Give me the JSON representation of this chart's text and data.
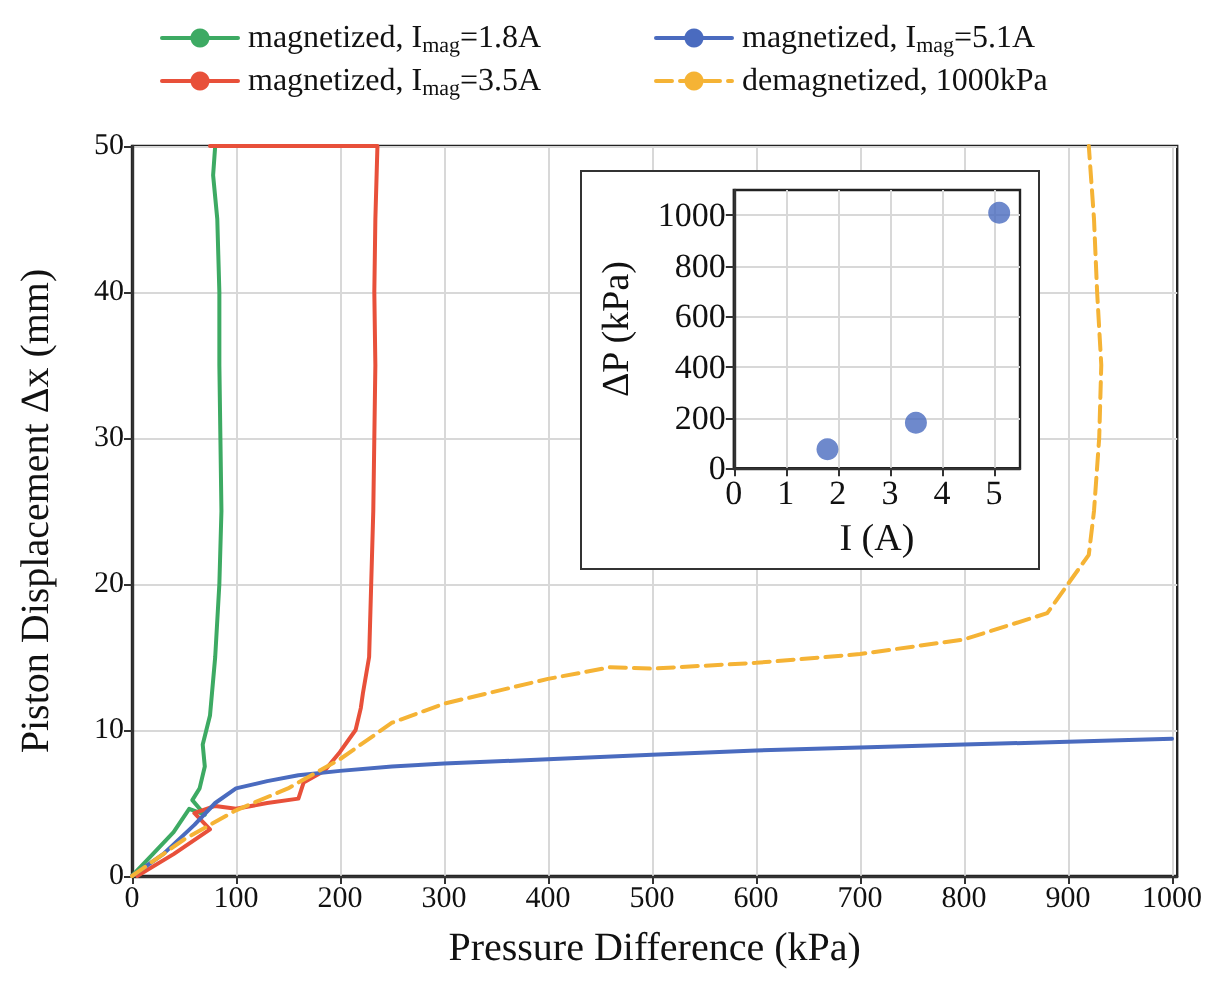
{
  "chart_data": [
    {
      "type": "line",
      "xlabel": "Pressure Difference (kPa)",
      "ylabel": "Piston Displacement Δx (mm)",
      "xlim": [
        0,
        1005
      ],
      "xticks": [
        0,
        100,
        200,
        300,
        400,
        500,
        600,
        700,
        800,
        900,
        1000
      ],
      "ylim": [
        0,
        50
      ],
      "yticks": [
        0,
        10,
        20,
        30,
        40,
        50
      ],
      "grid": true,
      "legend": "top",
      "series": [
        {
          "name": "magnetized, I$_{mag}$=1.8A",
          "color": "#3daa63",
          "line_style": "solid",
          "x": [
            0,
            20,
            40,
            55,
            70,
            58,
            65,
            70,
            68,
            75,
            80,
            84,
            86,
            85,
            84,
            84,
            82,
            78,
            80
          ],
          "values": [
            0,
            1.5,
            3,
            4.6,
            4.2,
            5.2,
            6,
            7.5,
            9,
            11,
            15,
            20,
            25,
            30,
            35,
            40,
            45,
            48,
            50
          ]
        },
        {
          "name": "magnetized, I$_{mag}$=3.5A",
          "color": "#e8503a",
          "line_style": "solid",
          "x": [
            5,
            40,
            75,
            60,
            80,
            100,
            130,
            160,
            165,
            185,
            200,
            215,
            220,
            222,
            228,
            230,
            232,
            233,
            234,
            233,
            234,
            236,
            75
          ],
          "values": [
            0,
            1.5,
            3.2,
            4.3,
            4.8,
            4.6,
            5,
            5.3,
            6.4,
            7.2,
            8.5,
            10,
            11.5,
            12.5,
            15,
            20,
            25,
            30,
            35,
            40,
            45,
            50,
            50
          ]
        },
        {
          "name": "magnetized, I$_{mag}$=5.1A",
          "color": "#4a6bbf",
          "line_style": "solid",
          "x": [
            0,
            30,
            60,
            80,
            100,
            130,
            160,
            200,
            250,
            300,
            400,
            500,
            600,
            700,
            800,
            900,
            1000
          ],
          "values": [
            0,
            1.5,
            3.5,
            5,
            6,
            6.5,
            6.9,
            7.2,
            7.5,
            7.7,
            8,
            8.3,
            8.6,
            8.8,
            9,
            9.2,
            9.4
          ]
        },
        {
          "name": "demagnetized, 1000kPa",
          "color": "#f5b335",
          "line_style": "dashed",
          "x": [
            0,
            50,
            100,
            150,
            200,
            250,
            300,
            400,
            460,
            500,
            600,
            700,
            800,
            880,
            920,
            925,
            930,
            932,
            928,
            925,
            920
          ],
          "values": [
            0,
            2.5,
            4.5,
            6,
            8,
            10.5,
            11.8,
            13.5,
            14.3,
            14.2,
            14.6,
            15.2,
            16.2,
            18,
            22,
            25,
            30,
            35,
            40,
            45,
            50
          ]
        }
      ]
    },
    {
      "type": "scatter",
      "xlabel": "I (A)",
      "ylabel": "ΔP (kPa)",
      "xlim": [
        0,
        5.5
      ],
      "xticks": [
        0,
        1,
        2,
        3,
        4,
        5
      ],
      "ylim": [
        0,
        1100
      ],
      "yticks": [
        0,
        200,
        400,
        600,
        800,
        1000
      ],
      "grid": true,
      "marker": "circle",
      "series": [
        {
          "color": "#4a6bbf",
          "x": [
            1.8,
            3.5,
            5.1
          ],
          "values": [
            75,
            180,
            1010
          ]
        }
      ]
    }
  ]
}
